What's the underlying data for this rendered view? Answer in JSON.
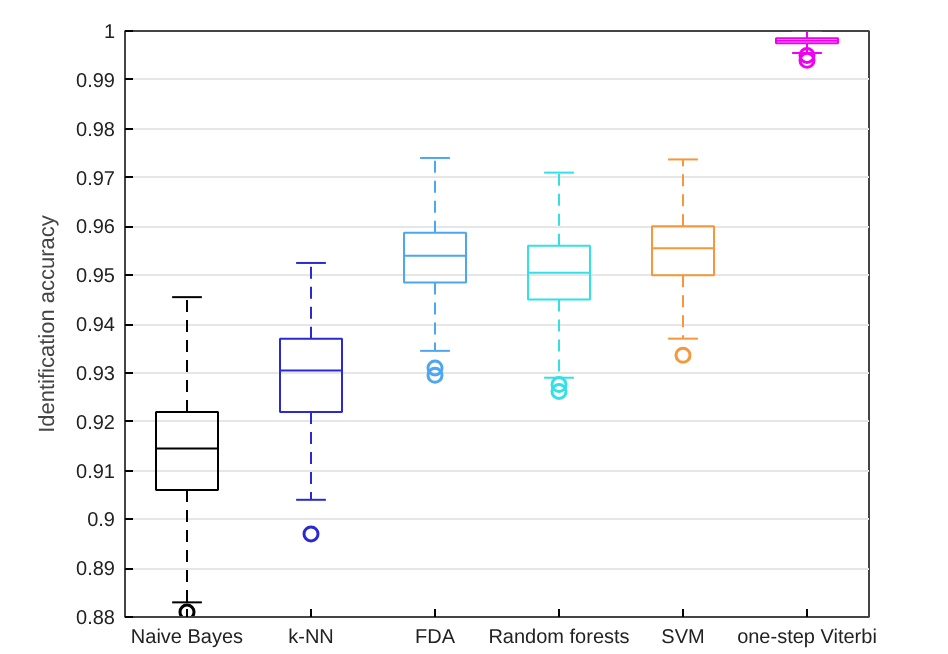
{
  "chart_data": {
    "type": "box",
    "ylabel": "Identification accuracy",
    "categories": [
      "Naive Bayes",
      "k-NN",
      "FDA",
      "Random forests",
      "SVM",
      "one-step Viterbi"
    ],
    "colors": [
      "#000000",
      "#2a2ad0",
      "#4da6f0",
      "#33e0e6",
      "#f5973a",
      "#f000f0"
    ],
    "boxes": [
      {
        "low": 0.883,
        "q1": 0.906,
        "median": 0.9145,
        "q3": 0.922,
        "high": 0.9455,
        "outliers": [
          0.881
        ]
      },
      {
        "low": 0.904,
        "q1": 0.922,
        "median": 0.9305,
        "q3": 0.937,
        "high": 0.9525,
        "outliers": [
          0.897
        ]
      },
      {
        "low": 0.9345,
        "q1": 0.9485,
        "median": 0.954,
        "q3": 0.9587,
        "high": 0.974,
        "outliers": [
          0.931,
          0.9295
        ]
      },
      {
        "low": 0.929,
        "q1": 0.945,
        "median": 0.9505,
        "q3": 0.956,
        "high": 0.971,
        "outliers": [
          0.9276,
          0.9262
        ]
      },
      {
        "low": 0.937,
        "q1": 0.95,
        "median": 0.9555,
        "q3": 0.96,
        "high": 0.9737,
        "outliers": [
          0.9336
        ]
      },
      {
        "low": 0.9955,
        "q1": 0.9975,
        "median": 0.998,
        "q3": 0.9985,
        "high": 1.0,
        "outliers": [
          0.995,
          0.994
        ]
      }
    ],
    "ylim": [
      0.88,
      1.0
    ],
    "yticks": [
      0.88,
      0.89,
      {
        "value": 0.9,
        "label": "0.9"
      },
      0.91,
      0.92,
      0.93,
      0.94,
      0.95,
      0.96,
      0.97,
      0.98,
      0.99,
      {
        "value": 1.0,
        "label": "1"
      }
    ],
    "grid": "y",
    "line_style": "dashed",
    "marker": "circle"
  }
}
